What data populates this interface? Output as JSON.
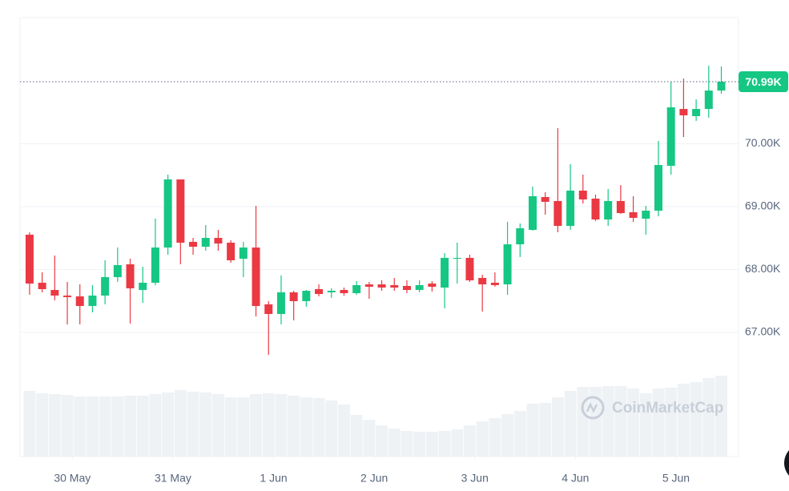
{
  "chart_data": {
    "type": "candlestick",
    "x": [
      0,
      1,
      2,
      3,
      4,
      5,
      6,
      7,
      8,
      9,
      10,
      11,
      12,
      13,
      14,
      15,
      16,
      17,
      18,
      19,
      20,
      21,
      22,
      23,
      24,
      25,
      26,
      27,
      28,
      29,
      30,
      31,
      32,
      33,
      34,
      35,
      36,
      37,
      38,
      39,
      40,
      41,
      42,
      43,
      44,
      45,
      46,
      47,
      48,
      49,
      50,
      51,
      52,
      53,
      54,
      55
    ],
    "xlim": [
      -0.76,
      56.37
    ],
    "xticks": [
      {
        "value": 3.4,
        "label": "30 May"
      },
      {
        "value": 11.4,
        "label": "31 May"
      },
      {
        "value": 19.4,
        "label": "1 Jun"
      },
      {
        "value": 27.4,
        "label": "2 Jun"
      },
      {
        "value": 35.4,
        "label": "3 Jun"
      },
      {
        "value": 43.4,
        "label": "4 Jun"
      },
      {
        "value": 51.4,
        "label": "5 Jun"
      }
    ],
    "open": [
      68554,
      67790,
      67675,
      67586,
      67573,
      67420,
      67586,
      67879,
      68083,
      67675,
      67790,
      68350,
      69433,
      68440,
      68363,
      68503,
      68427,
      68172,
      68350,
      67446,
      67293,
      67637,
      67497,
      67688,
      67637,
      67675,
      67624,
      67764,
      67764,
      67752,
      67739,
      67675,
      67777,
      67713,
      68172,
      68185,
      67866,
      67790,
      67764,
      68401,
      68631,
      69153,
      69090,
      68694,
      69255,
      69128,
      68796,
      69090,
      68911,
      68809,
      68936,
      69650,
      70554,
      70440,
      70554,
      70847
    ],
    "high": [
      68592,
      67955,
      68223,
      67803,
      67764,
      67752,
      68147,
      68350,
      68172,
      68045,
      68809,
      69510,
      69433,
      68503,
      68707,
      68631,
      68465,
      68440,
      69013,
      67497,
      67905,
      67662,
      67675,
      67764,
      67701,
      67713,
      67815,
      67803,
      67828,
      67866,
      67828,
      67828,
      67815,
      68261,
      68427,
      68236,
      67917,
      67955,
      68758,
      68733,
      69319,
      69230,
      70249,
      69675,
      69510,
      69191,
      69280,
      69344,
      69166,
      69013,
      70045,
      70987,
      71038,
      70707,
      71242,
      71229
    ],
    "low": [
      67599,
      67637,
      67510,
      67127,
      67127,
      67318,
      67446,
      67803,
      67140,
      67471,
      67752,
      68236,
      68083,
      68236,
      68299,
      68299,
      68108,
      67879,
      67255,
      66643,
      67127,
      67191,
      67408,
      67573,
      67548,
      67586,
      67599,
      67535,
      67662,
      67662,
      67624,
      67637,
      67650,
      67382,
      67777,
      67803,
      67331,
      67726,
      67599,
      68198,
      68618,
      68873,
      68592,
      68631,
      69051,
      68771,
      68694,
      68885,
      68758,
      68554,
      68847,
      69510,
      70108,
      70363,
      70414,
      70796
    ],
    "close": [
      67777,
      67688,
      67586,
      67561,
      67420,
      67586,
      67879,
      68070,
      67701,
      67790,
      68350,
      69433,
      68427,
      68363,
      68503,
      68414,
      68147,
      68350,
      67420,
      67293,
      67637,
      67497,
      67662,
      67611,
      67662,
      67624,
      67752,
      67726,
      67713,
      67713,
      67675,
      67752,
      67726,
      68185,
      68185,
      67828,
      67764,
      67752,
      68401,
      68656,
      69166,
      69077,
      68694,
      69255,
      69115,
      68796,
      69090,
      68898,
      68822,
      68936,
      69663,
      70580,
      70453,
      70554,
      70847,
      70987
    ],
    "volume": [
      82,
      79,
      78,
      77,
      75,
      75,
      75,
      75,
      76,
      76,
      78,
      80,
      83,
      81,
      80,
      78,
      74,
      74,
      78,
      79,
      78,
      76,
      74,
      73,
      70,
      65,
      52,
      46,
      39,
      35,
      32,
      31,
      31,
      32,
      34,
      39,
      44,
      48,
      53,
      57,
      66,
      67,
      74,
      82,
      87,
      87,
      88,
      88,
      85,
      79,
      85,
      86,
      91,
      93,
      98,
      101
    ],
    "ylim": [
      65025,
      72007
    ],
    "yticks": [
      {
        "value": 67000,
        "label": "67.00K"
      },
      {
        "value": 68000,
        "label": "68.00K"
      },
      {
        "value": 69000,
        "label": "69.00K"
      },
      {
        "value": 70000,
        "label": "70.00K"
      }
    ],
    "y2lim": [
      0,
      548
    ],
    "grid": true,
    "up_color": "#16c784",
    "down_color": "#ea3943",
    "volume_color": "#eff2f5",
    "last_price": {
      "value": 70987,
      "label": "70.99K"
    },
    "watermark": "CoinMarketCap"
  }
}
